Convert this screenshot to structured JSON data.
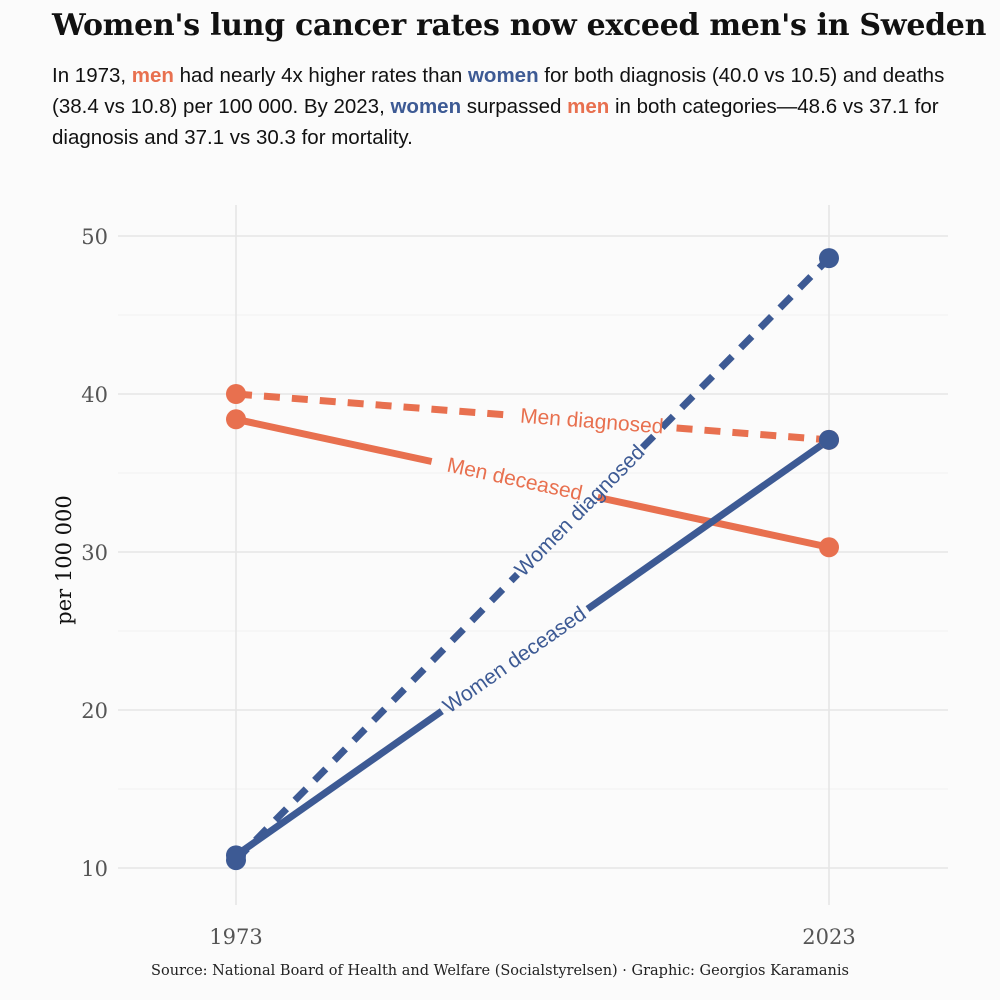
{
  "title": "Women's lung cancer rates now exceed men's in Sweden",
  "subtitle": {
    "p1": "In 1973, ",
    "men_word": "men",
    "p2": " had nearly 4x higher rates than ",
    "women_word": "women",
    "p3": " for both diagnosis (40.0 vs 10.5) and deaths (38.4 vs 10.8) per 100 000. By 2023, ",
    "p4": " surpassed ",
    "p5": " in both categories—48.6 vs 37.1 for diagnosis and 37.1 vs 30.3 for mortality."
  },
  "caption": "Source: National Board of Health and Welfare (Socialstyrelsen) · Graphic: Georgios Karamanis",
  "colors": {
    "men": "#e8704f",
    "women": "#3d5a94",
    "grid_major": "#e6e6e6",
    "grid_minor": "#f0f0f0"
  },
  "chart_data": {
    "type": "line",
    "title": "Women's lung cancer rates now exceed men's in Sweden",
    "xlabel": "",
    "ylabel": "per 100 000",
    "x": [
      1973,
      2023
    ],
    "x_ticks": [
      "1973",
      "2023"
    ],
    "y_ticks": [
      "10",
      "20",
      "30",
      "40",
      "50"
    ],
    "ylim": [
      8,
      52
    ],
    "series": [
      {
        "name": "Men diagnosed",
        "group": "men",
        "dashed": true,
        "values": [
          40.0,
          37.1
        ]
      },
      {
        "name": "Men deceased",
        "group": "men",
        "dashed": false,
        "values": [
          38.4,
          30.3
        ]
      },
      {
        "name": "Women diagnosed",
        "group": "women",
        "dashed": true,
        "values": [
          10.5,
          48.6
        ]
      },
      {
        "name": "Women deceased",
        "group": "women",
        "dashed": false,
        "values": [
          10.8,
          37.1
        ]
      }
    ]
  }
}
